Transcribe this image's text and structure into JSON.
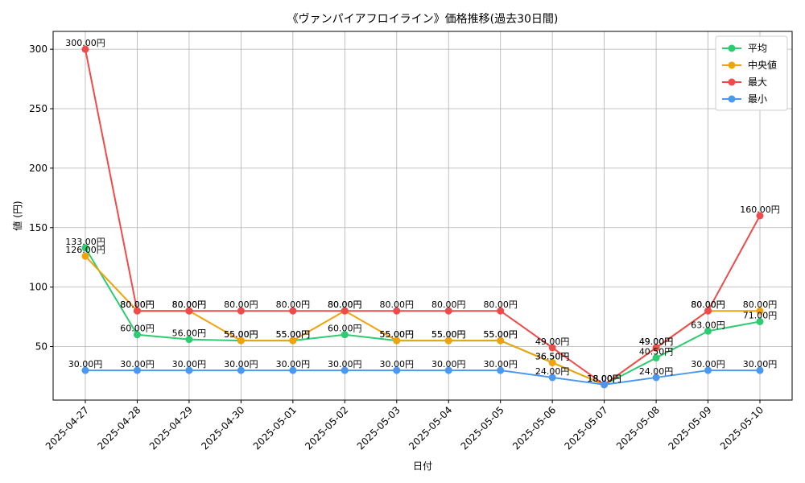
{
  "chart_data": {
    "type": "line",
    "title": "《ヴァンパイアフロイライン》価格推移(過去30日間)",
    "xlabel": "日付",
    "ylabel": "値 (円)",
    "ylim": [
      5,
      315
    ],
    "yticks": [
      50,
      100,
      150,
      200,
      250,
      300
    ],
    "grid": true,
    "legend_position": "top-right",
    "value_suffix": "円",
    "categories": [
      "2025-04-27",
      "2025-04-28",
      "2025-04-29",
      "2025-04-30",
      "2025-05-01",
      "2025-05-02",
      "2025-05-03",
      "2025-05-04",
      "2025-05-05",
      "2025-05-06",
      "2025-05-07",
      "2025-05-08",
      "2025-05-09",
      "2025-05-10"
    ],
    "series": [
      {
        "name": "平均",
        "color": "#2ecc71",
        "values": [
          133,
          60,
          56,
          55,
          55,
          60,
          55,
          55,
          55,
          36.5,
          18,
          40.5,
          63,
          71
        ]
      },
      {
        "name": "中央値",
        "color": "#f0a30a",
        "values": [
          126,
          80,
          80,
          55,
          55,
          80,
          55,
          55,
          55,
          36.5,
          18,
          49,
          80,
          80
        ]
      },
      {
        "name": "最大",
        "color": "#ef4b4b",
        "values": [
          300,
          80,
          80,
          80,
          80,
          80,
          80,
          80,
          80,
          49,
          18,
          49,
          80,
          160
        ]
      },
      {
        "name": "最小",
        "color": "#4a98f0",
        "values": [
          30,
          30,
          30,
          30,
          30,
          30,
          30,
          30,
          30,
          24,
          18,
          24,
          30,
          30
        ]
      }
    ]
  }
}
